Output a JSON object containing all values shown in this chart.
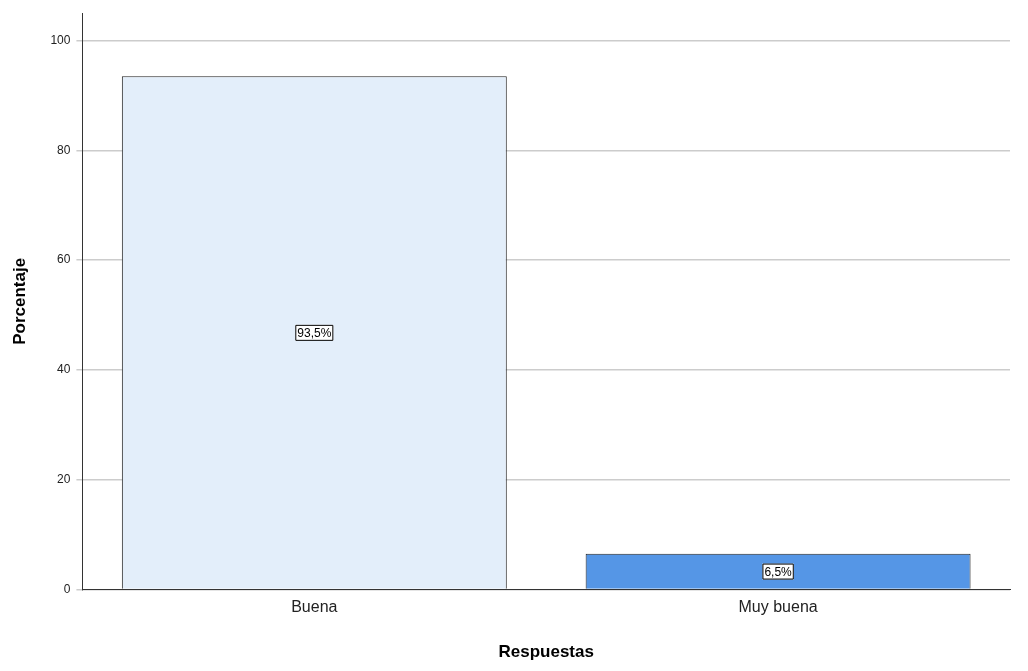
{
  "chart_data": {
    "type": "bar",
    "xlabel": "Respuestas",
    "ylabel": "Porcentaje",
    "categories": [
      "Buena",
      "Muy buena"
    ],
    "values": [
      93.5,
      6.5
    ],
    "colors": [
      "#e3eefa",
      "#5596e6"
    ],
    "value_labels": [
      "93,5%",
      "6,5%"
    ],
    "ylim": [
      0,
      105
    ],
    "yticks": [
      0,
      20,
      40,
      60,
      80,
      100
    ],
    "grid": "y"
  }
}
